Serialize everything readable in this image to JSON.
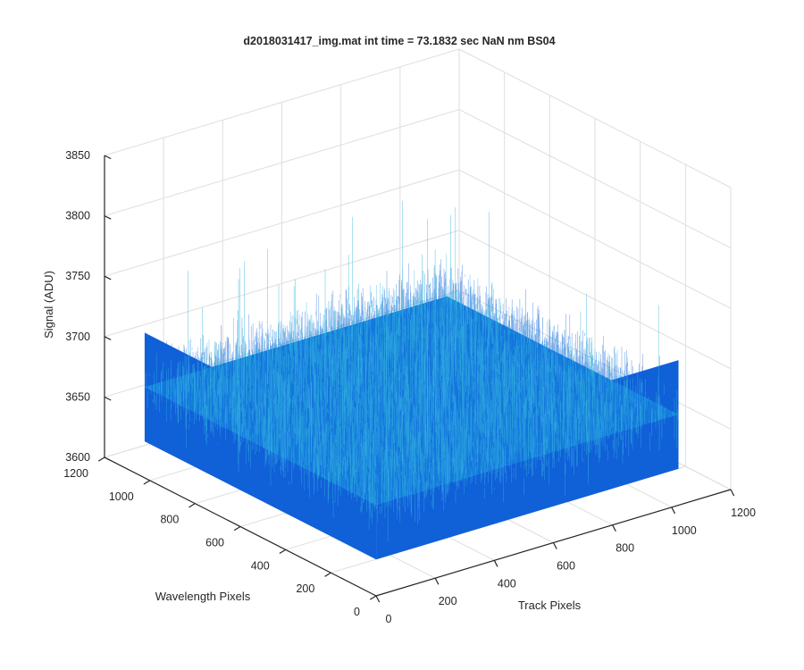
{
  "window": {
    "background": "#ffffff"
  },
  "chart_data": {
    "type": "surface",
    "title": "d2018031417_img.mat int time = 73.1832 sec   NaN nm BS04",
    "xlabel": "Track Pixels",
    "ylabel": "Wavelength Pixels",
    "zlabel": "Signal (ADU)",
    "xlim": [
      0,
      1200
    ],
    "ylim": [
      0,
      1200
    ],
    "zlim": [
      3600,
      3850
    ],
    "x_ticks": [
      0,
      200,
      400,
      600,
      800,
      1000,
      1200
    ],
    "y_ticks": [
      0,
      200,
      400,
      600,
      800,
      1000,
      1200
    ],
    "z_ticks": [
      3600,
      3650,
      3700,
      3750,
      3800,
      3850
    ],
    "x_tick_labels": [
      "0",
      "200",
      "400",
      "600",
      "800",
      "1000",
      "1200"
    ],
    "y_tick_labels": [
      "0",
      "200",
      "400",
      "600",
      "800",
      "1000",
      "1200"
    ],
    "z_tick_labels": [
      "3600",
      "3650",
      "3700",
      "3750",
      "3800",
      "3850"
    ],
    "surface": {
      "x_range": [
        1,
        1024
      ],
      "y_range": [
        1,
        1024
      ],
      "mean_level": 3675,
      "noise_band": [
        3630,
        3720
      ],
      "occasional_spikes_up_to": 3800
    },
    "grid": true,
    "colors": {
      "surface_dark": "#1060d8",
      "surface_mid": "#1a8ee0",
      "surface_light": "#35b8e0",
      "grid": "#dedede",
      "axis": "#262626"
    }
  }
}
